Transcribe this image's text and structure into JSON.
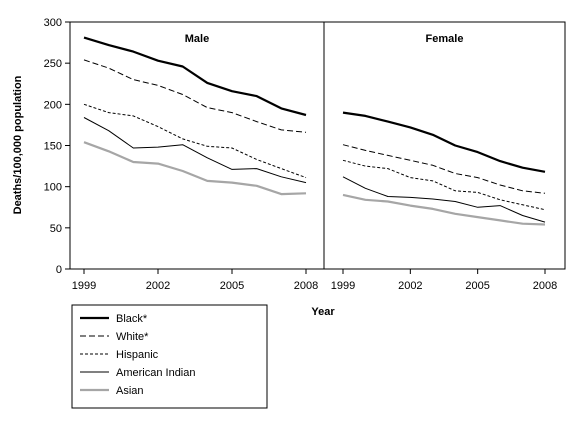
{
  "chart_data": {
    "type": "line",
    "ylabel": "Deaths/100,000 population",
    "xlabel": "Year",
    "ylim": [
      0,
      300
    ],
    "yticks": [
      "0",
      "50",
      "100",
      "150",
      "200",
      "250",
      "300"
    ],
    "xlim": [
      1999,
      2008
    ],
    "xticks": [
      {
        "value": 1999,
        "label": "1999"
      },
      {
        "value": 2002,
        "label": "2002"
      },
      {
        "value": 2005,
        "label": "2005"
      },
      {
        "value": 2008,
        "label": "2008"
      }
    ],
    "x": [
      1999,
      2000,
      2001,
      2002,
      2003,
      2004,
      2005,
      2006,
      2007,
      2008
    ],
    "legend_position": "bottom-left",
    "grid": false,
    "legend": [
      {
        "name": "Black*",
        "style": "thick-solid-black"
      },
      {
        "name": "White*",
        "style": "long-dash-black"
      },
      {
        "name": "Hispanic",
        "style": "short-dash-black"
      },
      {
        "name": "American Indian",
        "style": "thin-solid-black"
      },
      {
        "name": "Asian",
        "style": "thick-solid-gray"
      }
    ],
    "panels": [
      {
        "title": "Male",
        "series": [
          {
            "name": "Black*",
            "values": [
              281,
              272,
              264,
              253,
              246,
              226,
              216,
              210,
              195,
              187
            ]
          },
          {
            "name": "White*",
            "values": [
              254,
              244,
              230,
              223,
              212,
              196,
              190,
              179,
              169,
              166
            ]
          },
          {
            "name": "Hispanic",
            "values": [
              200,
              190,
              186,
              173,
              158,
              149,
              147,
              133,
              122,
              111
            ]
          },
          {
            "name": "American Indian",
            "values": [
              184,
              168,
              147,
              148,
              151,
              135,
              121,
              122,
              112,
              105
            ]
          },
          {
            "name": "Asian",
            "values": [
              154,
              143,
              130,
              128,
              119,
              107,
              105,
              101,
              91,
              92
            ]
          }
        ]
      },
      {
        "title": "Female",
        "series": [
          {
            "name": "Black*",
            "values": [
              190,
              186,
              179,
              172,
              163,
              150,
              142,
              131,
              123,
              118
            ]
          },
          {
            "name": "White*",
            "values": [
              151,
              144,
              138,
              132,
              126,
              116,
              111,
              102,
              95,
              92
            ]
          },
          {
            "name": "Hispanic",
            "values": [
              132,
              125,
              122,
              111,
              107,
              95,
              93,
              84,
              78,
              72
            ]
          },
          {
            "name": "American Indian",
            "values": [
              112,
              98,
              88,
              87,
              85,
              82,
              75,
              77,
              65,
              57
            ]
          },
          {
            "name": "Asian",
            "values": [
              90,
              84,
              82,
              77,
              73,
              67,
              63,
              59,
              55,
              54
            ]
          }
        ]
      }
    ]
  }
}
